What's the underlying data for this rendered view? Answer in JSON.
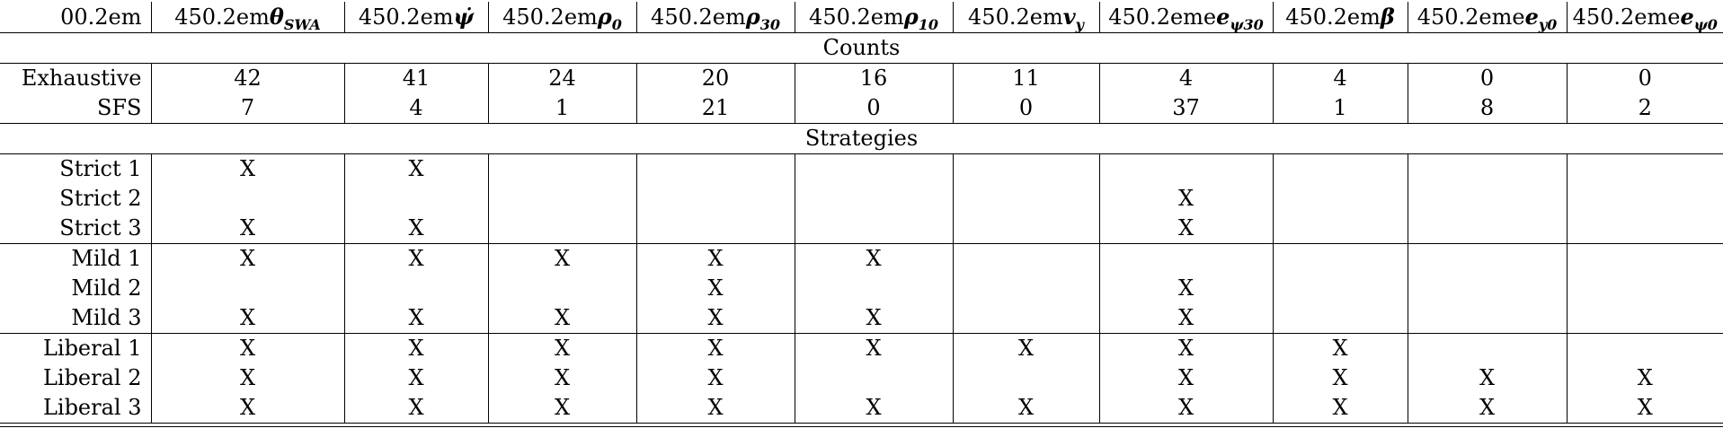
{
  "columns": [
    {
      "prefix": "00.2em",
      "sym": ""
    },
    {
      "prefix": "450.2em",
      "sym": "θ",
      "sub": "SWA"
    },
    {
      "prefix": "450.2em",
      "sym": "ψ̇",
      "sub": ""
    },
    {
      "prefix": "450.2em",
      "sym": "ρ",
      "sub": "0"
    },
    {
      "prefix": "450.2em",
      "sym": "ρ",
      "sub": "30"
    },
    {
      "prefix": "450.2em",
      "sym": "ρ",
      "sub": "10"
    },
    {
      "prefix": "450.2em",
      "sym": "v",
      "sub": "y"
    },
    {
      "prefix": "450.2eme",
      "sym": "e",
      "sub": "ψ30"
    },
    {
      "prefix": "450.2em",
      "sym": "β",
      "sub": ""
    },
    {
      "prefix": "450.2eme",
      "sym": "e",
      "sub": "y0"
    },
    {
      "prefix": "450.2eme",
      "sym": "e",
      "sub": "ψ0"
    }
  ],
  "sections": {
    "counts": "Counts",
    "strategies": "Strategies"
  },
  "counts_rows": [
    {
      "label": "Exhaustive",
      "cells": [
        "42",
        "41",
        "24",
        "20",
        "16",
        "11",
        "4",
        "4",
        "0",
        "0"
      ]
    },
    {
      "label": "SFS",
      "cells": [
        "7",
        "4",
        "1",
        "21",
        "0",
        "0",
        "37",
        "1",
        "8",
        "2"
      ]
    }
  ],
  "strategy_groups": [
    [
      {
        "label": "Strict 1",
        "cells": [
          "X",
          "X",
          "",
          "",
          "",
          "",
          "",
          "",
          "",
          ""
        ]
      },
      {
        "label": "Strict 2",
        "cells": [
          "",
          "",
          "",
          "",
          "",
          "",
          "X",
          "",
          "",
          ""
        ]
      },
      {
        "label": "Strict 3",
        "cells": [
          "X",
          "X",
          "",
          "",
          "",
          "",
          "X",
          "",
          "",
          ""
        ]
      }
    ],
    [
      {
        "label": "Mild 1",
        "cells": [
          "X",
          "X",
          "X",
          "X",
          "X",
          "",
          "",
          "",
          "",
          ""
        ]
      },
      {
        "label": "Mild 2",
        "cells": [
          "",
          "",
          "",
          "X",
          "",
          "",
          "X",
          "",
          "",
          ""
        ]
      },
      {
        "label": "Mild 3",
        "cells": [
          "X",
          "X",
          "X",
          "X",
          "X",
          "",
          "X",
          "",
          "",
          ""
        ]
      }
    ],
    [
      {
        "label": "Liberal 1",
        "cells": [
          "X",
          "X",
          "X",
          "X",
          "X",
          "X",
          "X",
          "X",
          "",
          ""
        ]
      },
      {
        "label": "Liberal 2",
        "cells": [
          "X",
          "X",
          "X",
          "X",
          "",
          "",
          "X",
          "X",
          "X",
          "X"
        ]
      },
      {
        "label": "Liberal 3",
        "cells": [
          "X",
          "X",
          "X",
          "X",
          "X",
          "X",
          "X",
          "X",
          "X",
          "X"
        ]
      }
    ]
  ]
}
